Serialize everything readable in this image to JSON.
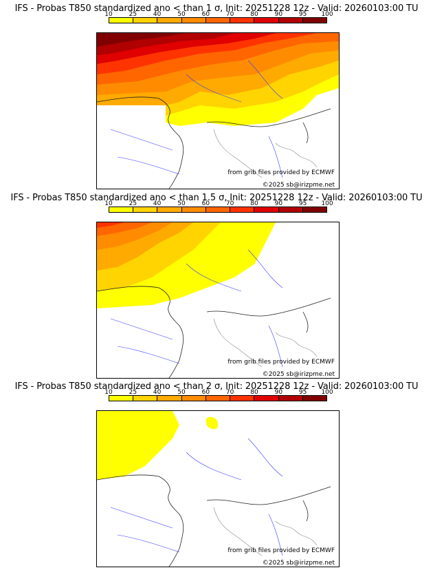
{
  "colorbar": {
    "ticks": [
      "10",
      "25",
      "40",
      "50",
      "60",
      "70",
      "80",
      "90",
      "95",
      "100"
    ],
    "colors": [
      "#ffff00",
      "#ffd400",
      "#ffaa00",
      "#ff8c00",
      "#ff6600",
      "#ff3300",
      "#e00000",
      "#b00000",
      "#800000"
    ]
  },
  "panels": [
    {
      "title": "IFS - Probas T850  standardized ano < than 1 σ, Init: 20251228 12z - Valid: 20260103:00 TU",
      "source": "from grib files provided by ECMWF",
      "copyright": "©2025 sb@irizpme.net"
    },
    {
      "title": "IFS - Probas T850  standardized ano < than 1.5 σ, Init: 20251228 12z - Valid: 20260103:00 TU",
      "source": "from grib files provided by ECMWF",
      "copyright": "©2025 sb@irizpme.net"
    },
    {
      "title": "IFS - Probas T850  standardized ano < than 2 σ, Init: 20251228 12z - Valid: 20260103:00 TU",
      "source": "from grib files provided by ECMWF",
      "copyright": "©2025 sb@irizpme.net"
    }
  ]
}
